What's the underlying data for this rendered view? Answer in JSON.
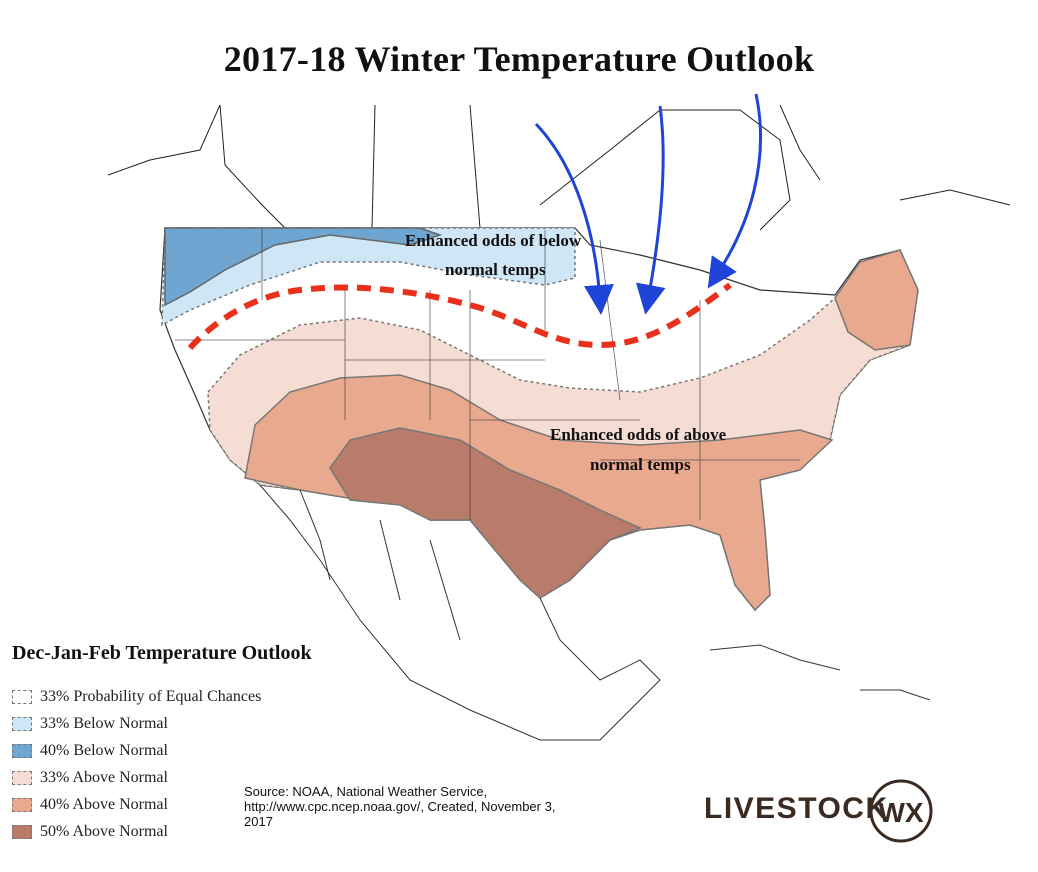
{
  "title": "2017-18 Winter Temperature Outlook",
  "map_annotations": {
    "below": [
      "Enhanced odds of below",
      "normal temps"
    ],
    "above": [
      "Enhanced odds of above",
      "normal temps"
    ]
  },
  "legend": {
    "title": "Dec-Jan-Feb Temperature Outlook",
    "items": [
      {
        "label": "33% Probability of Equal Chances",
        "color": "#ffffff"
      },
      {
        "label": "33% Below Normal",
        "color": "#cfe6f7"
      },
      {
        "label": "40% Below Normal",
        "color": "#6fa6d1"
      },
      {
        "label": "33% Above Normal",
        "color": "#f5ddd3"
      },
      {
        "label": "40% Above Normal",
        "color": "#e9a98f"
      },
      {
        "label": "50% Above Normal",
        "color": "#b97c6a"
      }
    ]
  },
  "source": {
    "lines": [
      "Source: NOAA, National Weather Service,",
      "http://www.cpc.ncep.noaa.gov/, Created, November 3,",
      "2017"
    ]
  },
  "logo": {
    "text": "LIVESTOCK",
    "mark": "WX"
  },
  "colors": {
    "arrow": "#1f45d8",
    "jet_stream": "#e8301c",
    "logo": "#3a2a22"
  },
  "icons": {
    "arrows": "cold-air-arrow",
    "jet": "jet-stream-line"
  }
}
